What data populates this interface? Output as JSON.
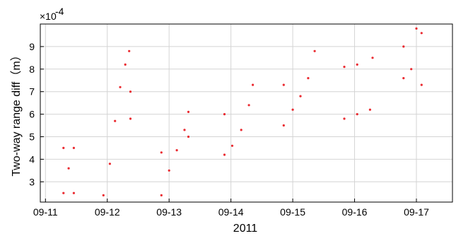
{
  "chart_data": {
    "type": "scatter",
    "title": "",
    "xlabel": "2011",
    "ylabel": "Two-way range diff（m）",
    "y_exponent": "×10",
    "y_exponent_power": "-4",
    "y_multiplier": 0.0001,
    "xlim": [
      "2011-09-10 22:00",
      "2011-09-17 14:00"
    ],
    "ylim": [
      2.1,
      10.0
    ],
    "x_ticks": [
      {
        "date": "2011-09-11",
        "label": "09-11"
      },
      {
        "date": "2011-09-12",
        "label": "09-12"
      },
      {
        "date": "2011-09-13",
        "label": "09-13"
      },
      {
        "date": "2011-09-14",
        "label": "09-14"
      },
      {
        "date": "2011-09-15",
        "label": "09-15"
      },
      {
        "date": "2011-09-16",
        "label": "09-16"
      },
      {
        "date": "2011-09-17",
        "label": "09-17"
      }
    ],
    "y_ticks": [
      {
        "value": 3,
        "label": "3"
      },
      {
        "value": 4,
        "label": "4"
      },
      {
        "value": 5,
        "label": "5"
      },
      {
        "value": 6,
        "label": "6"
      },
      {
        "value": 7,
        "label": "7"
      },
      {
        "value": 8,
        "label": "8"
      },
      {
        "value": 9,
        "label": "9"
      }
    ],
    "grid": true,
    "marker_color": "#e8141b",
    "series": [
      {
        "points": [
          [
            "2011-09-11 07:00",
            2.5
          ],
          [
            "2011-09-11 07:00",
            4.5
          ],
          [
            "2011-09-11 11:00",
            2.5
          ],
          [
            "2011-09-11 11:00",
            4.5
          ],
          [
            "2011-09-11 09:00",
            3.6
          ]
        ]
      },
      {
        "points": [
          [
            "2011-09-11 22:30",
            2.4
          ],
          [
            "2011-09-12 01:00",
            3.8
          ],
          [
            "2011-09-12 03:00",
            5.7
          ],
          [
            "2011-09-12 05:00",
            7.2
          ],
          [
            "2011-09-12 07:00",
            8.2
          ],
          [
            "2011-09-12 08:30",
            8.8
          ],
          [
            "2011-09-12 09:00",
            7.0
          ],
          [
            "2011-09-12 09:00",
            5.8
          ]
        ]
      },
      {
        "points": [
          [
            "2011-09-12 21:00",
            2.4
          ],
          [
            "2011-09-13 00:00",
            3.5
          ],
          [
            "2011-09-13 03:00",
            4.4
          ],
          [
            "2011-09-13 06:00",
            5.3
          ],
          [
            "2011-09-13 07:30",
            6.1
          ],
          [
            "2011-09-13 07:30",
            5.0
          ],
          [
            "2011-09-12 21:00",
            4.3
          ]
        ]
      },
      {
        "points": [
          [
            "2011-09-13 21:30",
            4.2
          ],
          [
            "2011-09-14 00:30",
            4.6
          ],
          [
            "2011-09-14 04:00",
            5.3
          ],
          [
            "2011-09-14 07:00",
            6.4
          ],
          [
            "2011-09-14 08:30",
            7.3
          ],
          [
            "2011-09-13 21:30",
            6.0
          ]
        ]
      },
      {
        "points": [
          [
            "2011-09-14 20:30",
            5.5
          ],
          [
            "2011-09-14 20:30",
            7.3
          ],
          [
            "2011-09-15 00:00",
            6.2
          ],
          [
            "2011-09-15 03:00",
            6.8
          ],
          [
            "2011-09-15 06:00",
            7.6
          ],
          [
            "2011-09-15 08:30",
            8.8
          ]
        ]
      },
      {
        "points": [
          [
            "2011-09-15 20:00",
            5.8
          ],
          [
            "2011-09-15 20:00",
            8.1
          ],
          [
            "2011-09-16 01:00",
            6.0
          ],
          [
            "2011-09-16 01:00",
            8.2
          ],
          [
            "2011-09-16 06:00",
            6.2
          ],
          [
            "2011-09-16 07:00",
            8.5
          ]
        ]
      },
      {
        "points": [
          [
            "2011-09-16 19:00",
            7.6
          ],
          [
            "2011-09-16 19:00",
            9.0
          ],
          [
            "2011-09-16 22:00",
            8.0
          ],
          [
            "2011-09-17 00:00",
            9.8
          ],
          [
            "2011-09-17 02:00",
            7.3
          ],
          [
            "2011-09-17 02:00",
            9.6
          ]
        ]
      }
    ]
  }
}
